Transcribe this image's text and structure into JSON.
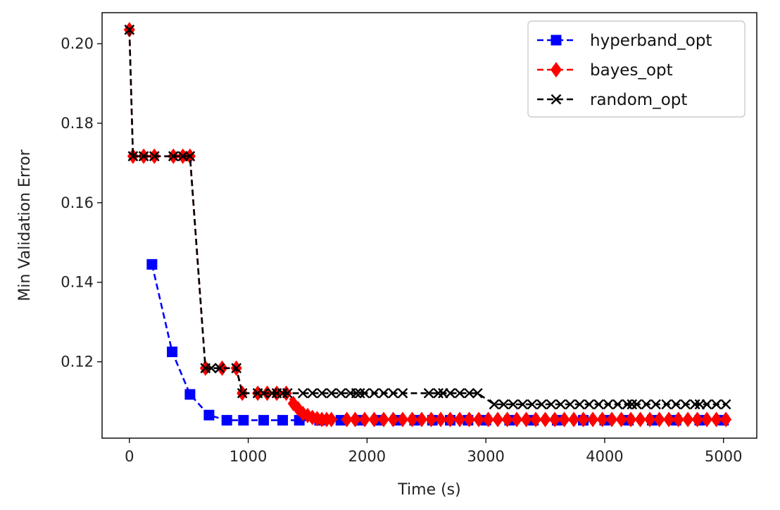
{
  "chart_data": {
    "type": "line",
    "title": "",
    "xlabel": "Time (s)",
    "ylabel": "Min Validation Error",
    "xlim": [
      -230,
      5280
    ],
    "ylim": [
      0.1008,
      0.2078
    ],
    "xticks": [
      0,
      1000,
      2000,
      3000,
      4000,
      5000
    ],
    "xtick_labels": [
      "0",
      "1000",
      "2000",
      "3000",
      "4000",
      "5000"
    ],
    "yticks": [
      0.12,
      0.14,
      0.16,
      0.18,
      0.2
    ],
    "ytick_labels": [
      "0.12",
      "0.14",
      "0.16",
      "0.18",
      "0.20"
    ],
    "grid": false,
    "legend_position": "top-right",
    "series": [
      {
        "name": "hyperband_opt",
        "color": "#0000ff",
        "marker": "square",
        "linestyle": "dashed",
        "x": [
          190,
          360,
          510,
          670,
          820,
          960,
          1130,
          1290,
          1430,
          1600,
          1780,
          1950,
          2100,
          2250,
          2400,
          2550,
          2700,
          2850,
          3000,
          3200,
          3400,
          3600,
          3820,
          4000,
          4200,
          4400,
          4600,
          4800,
          5000
        ],
        "y": [
          0.1445,
          0.1225,
          0.1118,
          0.1066,
          0.1053,
          0.1053,
          0.1053,
          0.1053,
          0.1053,
          0.1053,
          0.1053,
          0.1053,
          0.1053,
          0.1053,
          0.1053,
          0.1053,
          0.1053,
          0.1053,
          0.1053,
          0.1053,
          0.1053,
          0.1053,
          0.1053,
          0.1053,
          0.1053,
          0.1053,
          0.1053,
          0.1053,
          0.1053
        ]
      },
      {
        "name": "bayes_opt",
        "color": "#ff0000",
        "marker": "diamond",
        "linestyle": "dashed",
        "x": [
          0,
          30,
          120,
          210,
          370,
          450,
          510,
          640,
          780,
          900,
          950,
          1080,
          1160,
          1240,
          1320,
          1380,
          1420,
          1460,
          1500,
          1540,
          1580,
          1620,
          1660,
          1700,
          1830,
          1900,
          1980,
          2060,
          2140,
          2220,
          2300,
          2380,
          2460,
          2540,
          2620,
          2700,
          2780,
          2860,
          2940,
          3020,
          3100,
          3180,
          3260,
          3340,
          3420,
          3500,
          3580,
          3660,
          3740,
          3820,
          3900,
          3980,
          4060,
          4140,
          4220,
          4300,
          4380,
          4460,
          4540,
          4620,
          4700,
          4780,
          4860,
          4940,
          5020
        ],
        "y": [
          0.2035,
          0.1717,
          0.1717,
          0.1717,
          0.1717,
          0.1717,
          0.1717,
          0.1184,
          0.1184,
          0.1184,
          0.1121,
          0.1121,
          0.1121,
          0.1121,
          0.1121,
          0.1095,
          0.1082,
          0.107,
          0.1065,
          0.106,
          0.1057,
          0.1055,
          0.1055,
          0.1055,
          0.1055,
          0.1055,
          0.1055,
          0.1055,
          0.1055,
          0.1055,
          0.1055,
          0.1055,
          0.1055,
          0.1055,
          0.1055,
          0.1055,
          0.1055,
          0.1055,
          0.1055,
          0.1055,
          0.1055,
          0.1055,
          0.1055,
          0.1055,
          0.1055,
          0.1055,
          0.1055,
          0.1055,
          0.1055,
          0.1055,
          0.1055,
          0.1055,
          0.1055,
          0.1055,
          0.1055,
          0.1055,
          0.1055,
          0.1055,
          0.1055,
          0.1055,
          0.1055,
          0.1055,
          0.1055,
          0.1055,
          0.1055
        ]
      },
      {
        "name": "random_opt",
        "color": "#000000",
        "marker": "x",
        "linestyle": "dashed",
        "x": [
          0,
          30,
          120,
          210,
          370,
          450,
          510,
          640,
          690,
          760,
          900,
          950,
          1080,
          1130,
          1200,
          1240,
          1290,
          1330,
          1460,
          1540,
          1620,
          1700,
          1780,
          1860,
          1910,
          1940,
          1980,
          2060,
          2140,
          2220,
          2300,
          2520,
          2600,
          2640,
          2700,
          2780,
          2860,
          2930,
          3070,
          3150,
          3230,
          3310,
          3390,
          3470,
          3550,
          3630,
          3710,
          3790,
          3870,
          3950,
          4030,
          4110,
          4190,
          4230,
          4270,
          4350,
          4430,
          4520,
          4600,
          4680,
          4760,
          4800,
          4860,
          4940,
          5020
        ],
        "y": [
          0.2035,
          0.1717,
          0.1717,
          0.1717,
          0.1717,
          0.1717,
          0.1717,
          0.1184,
          0.1184,
          0.1184,
          0.1184,
          0.1121,
          0.1121,
          0.1121,
          0.1121,
          0.1121,
          0.1121,
          0.1121,
          0.1121,
          0.1121,
          0.1121,
          0.1121,
          0.1121,
          0.1121,
          0.1121,
          0.1121,
          0.1121,
          0.1121,
          0.1121,
          0.1121,
          0.1121,
          0.1121,
          0.1121,
          0.1121,
          0.1121,
          0.1121,
          0.1121,
          0.1121,
          0.1093,
          0.1093,
          0.1093,
          0.1093,
          0.1093,
          0.1093,
          0.1093,
          0.1093,
          0.1093,
          0.1093,
          0.1093,
          0.1093,
          0.1093,
          0.1093,
          0.1093,
          0.1093,
          0.1093,
          0.1093,
          0.1093,
          0.1093,
          0.1093,
          0.1093,
          0.1093,
          0.1093,
          0.1093,
          0.1093,
          0.1093
        ]
      }
    ]
  }
}
